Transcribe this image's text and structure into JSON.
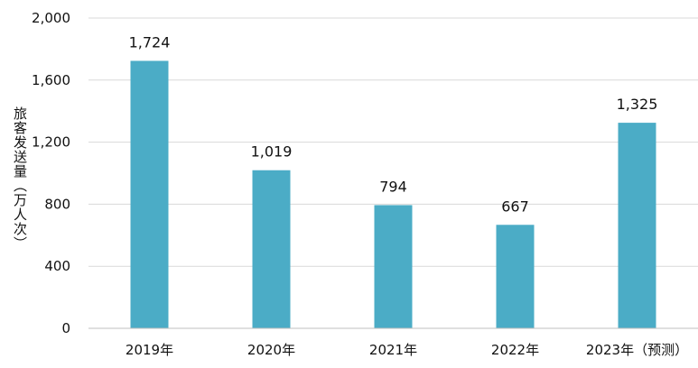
{
  "chart_data": {
    "type": "bar",
    "title": "",
    "xlabel": "",
    "ylabel": "旅客发送量（万人次）",
    "categories": [
      "2019年",
      "2020年",
      "2021年",
      "2022年",
      "2023年（预测）"
    ],
    "values": [
      1724,
      1019,
      794,
      667,
      1325
    ],
    "data_labels": [
      "1,724",
      "1,019",
      "794",
      "667",
      "1,325"
    ],
    "ylim": [
      0,
      2000
    ],
    "yticks": [
      0,
      400,
      800,
      1200,
      1600,
      2000
    ],
    "ytick_labels": [
      "0",
      "400",
      "800",
      "1,200",
      "1,600",
      "2,000"
    ],
    "grid": true,
    "legend": "none",
    "colors": {
      "bar": "#4BACC6",
      "grid": "#D9D9D9",
      "axis": "#BFBFBF",
      "text": "#111111"
    }
  }
}
